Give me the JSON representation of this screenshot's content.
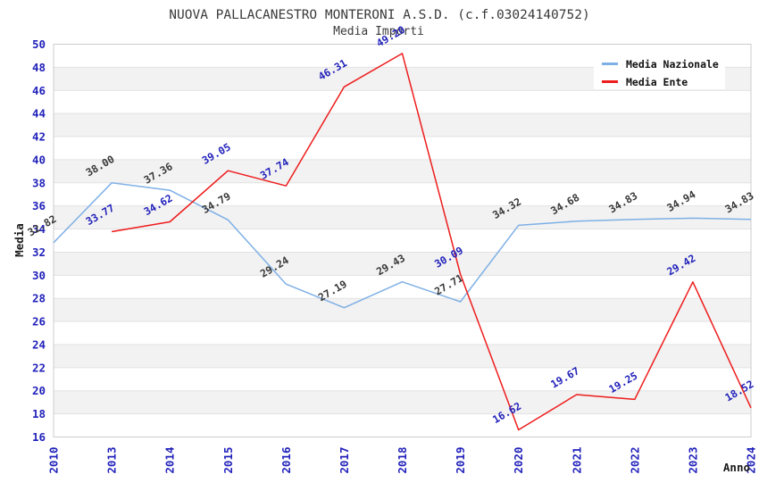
{
  "chart_data": {
    "type": "line",
    "title": "NUOVA PALLACANESTRO MONTERONI A.S.D. (c.f.03024140752)",
    "subtitle": "Media Importi",
    "xlabel": "Anno",
    "ylabel": "Media",
    "ylim": [
      16,
      50
    ],
    "ytick_step": 2,
    "y_ticks": [
      16,
      18,
      20,
      22,
      24,
      26,
      28,
      30,
      32,
      34,
      36,
      38,
      40,
      42,
      44,
      46,
      48,
      50
    ],
    "grid": "horizontal-bands",
    "legend_position": "top-right",
    "categories": [
      "2010",
      "2013",
      "2014",
      "2015",
      "2016",
      "2017",
      "2018",
      "2019",
      "2020",
      "2021",
      "2022",
      "2023",
      "2024"
    ],
    "series": [
      {
        "name": "Media Nazionale",
        "color": "#7fb0e5",
        "label_color": "#383838",
        "values": [
          32.82,
          38.0,
          37.36,
          34.79,
          29.24,
          27.19,
          29.43,
          27.71,
          34.32,
          34.68,
          34.83,
          34.94,
          34.83
        ],
        "labels": [
          "32.82",
          "38.00",
          "37.36",
          "34.79",
          "29.24",
          "27.19",
          "29.43",
          "27.71",
          "34.32",
          "34.68",
          "34.83",
          "34.94",
          "34.83"
        ]
      },
      {
        "name": "Media Ente",
        "color": "#ee1c1c",
        "label_color": "#2222bb",
        "values": [
          null,
          33.77,
          34.62,
          39.05,
          37.74,
          46.31,
          49.2,
          30.09,
          16.62,
          19.67,
          19.25,
          29.42,
          18.52
        ],
        "labels": [
          null,
          "33.77",
          "34.62",
          "39.05",
          "37.74",
          "46.31",
          "49.20",
          "30.09",
          "16.62",
          "19.67",
          "19.25",
          "29.42",
          "18.52"
        ]
      }
    ],
    "colors": {
      "tick_label": "#2222bb",
      "title_text": "#3a3a3a",
      "band_fill": "#f2f2f2",
      "grid_line": "#e2e2e2",
      "plot_border": "#cccccc",
      "legend_background": "#ffffff"
    }
  }
}
